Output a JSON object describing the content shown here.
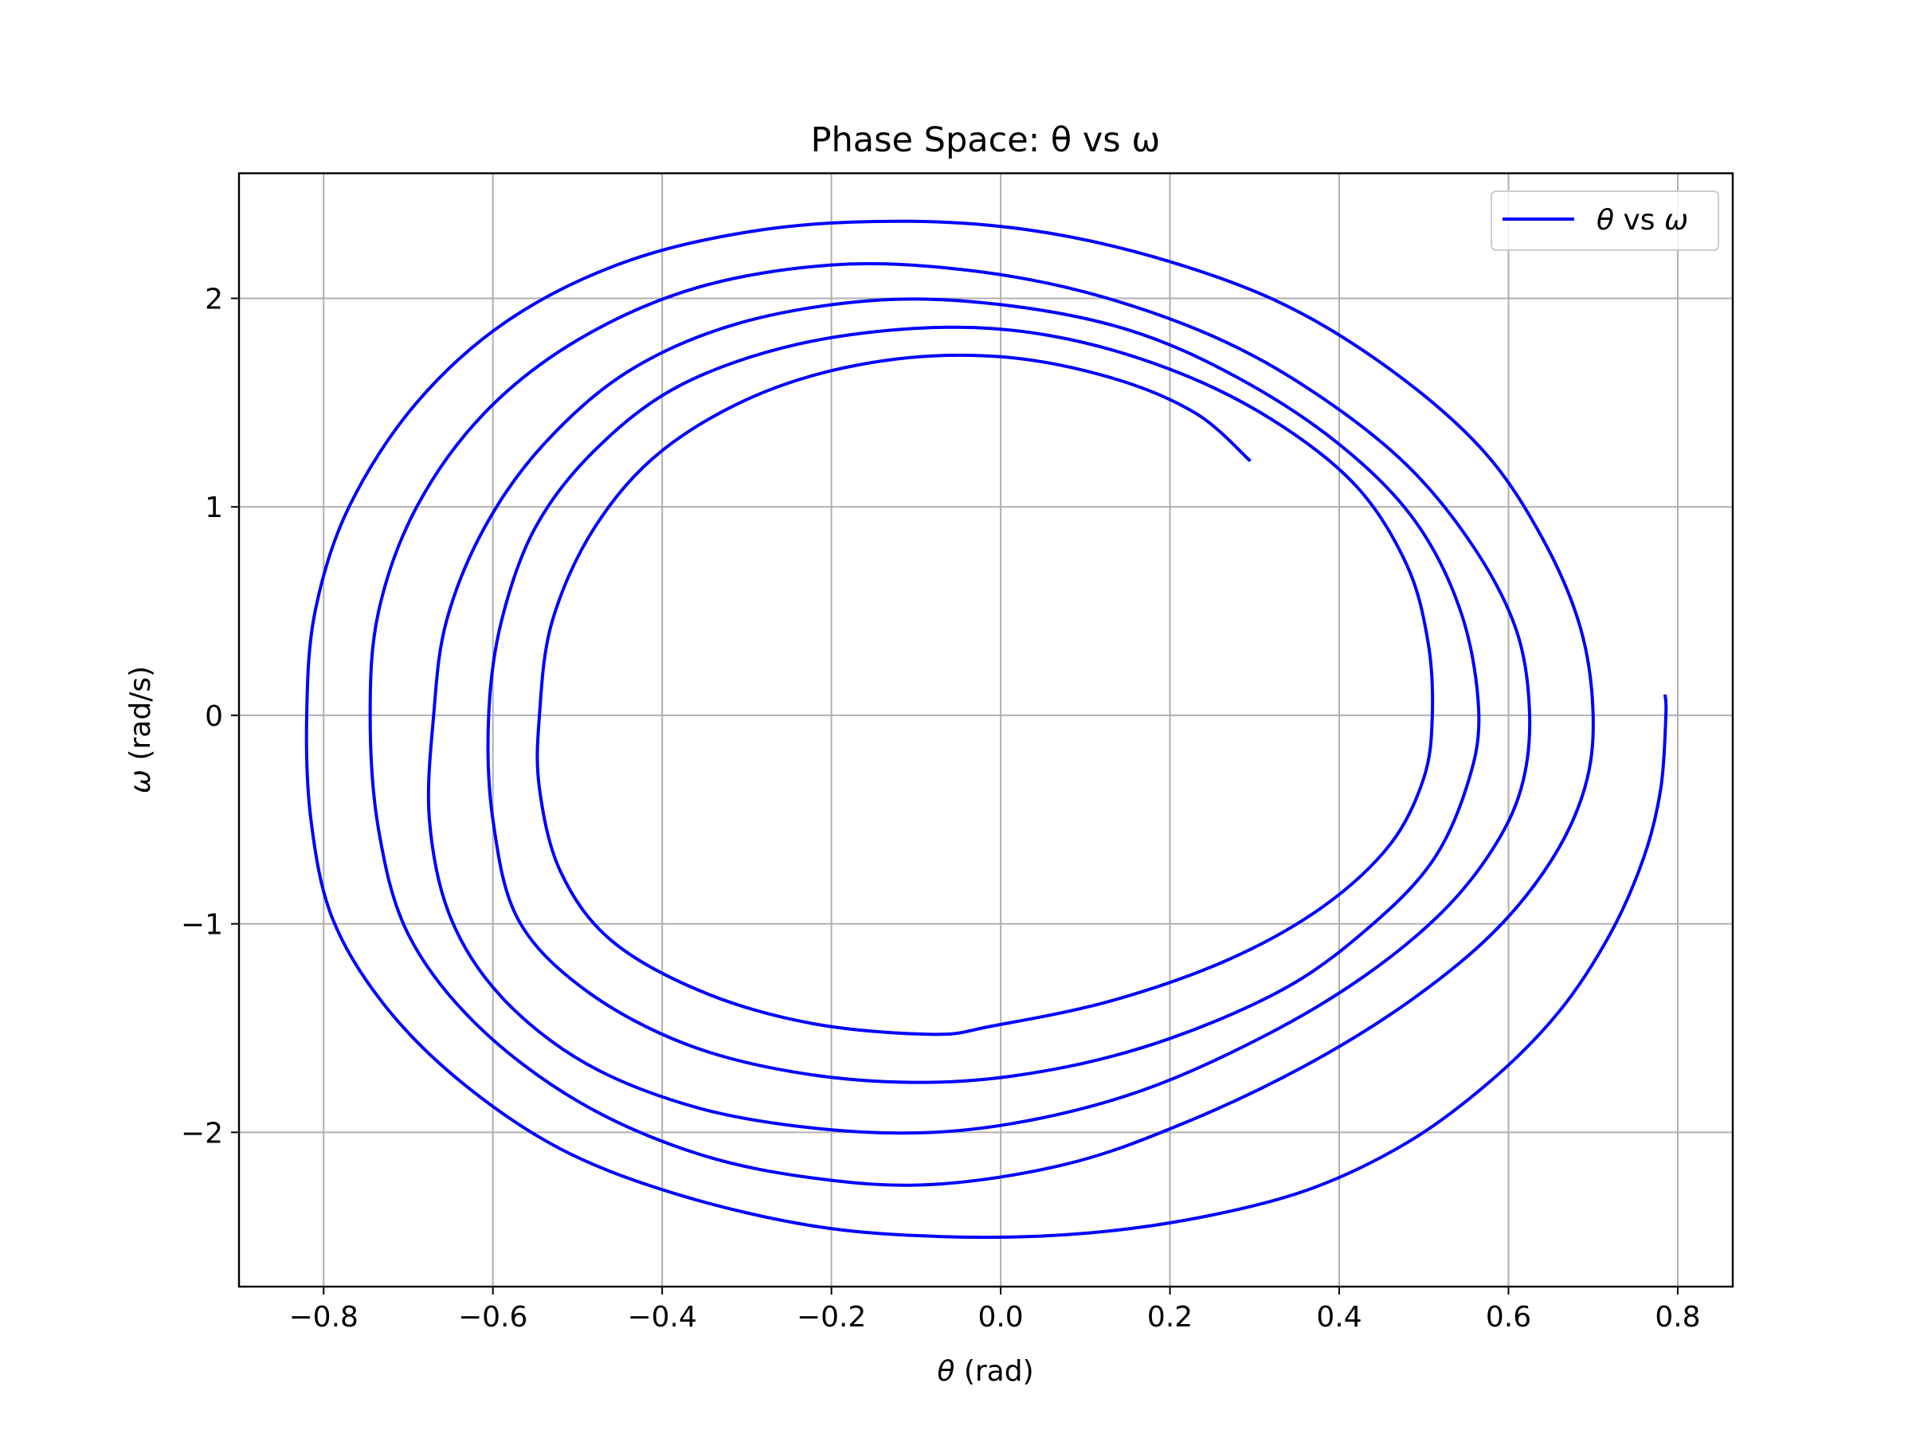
{
  "chart_data": {
    "type": "line",
    "title": "Phase Space: θ vs ω",
    "xlabel": {
      "symbol": "θ",
      "unit": " (rad)"
    },
    "ylabel": {
      "symbol": "ω",
      "unit": " (rad/s)"
    },
    "xlim": [
      -0.9,
      0.865
    ],
    "ylim": [
      -2.74,
      2.6
    ],
    "xticks": [
      -0.8,
      -0.6,
      -0.4,
      -0.2,
      0.0,
      0.2,
      0.4,
      0.6,
      0.8
    ],
    "xtick_labels": [
      "−0.8",
      "−0.6",
      "−0.4",
      "−0.2",
      "0.0",
      "0.2",
      "0.4",
      "0.6",
      "0.8"
    ],
    "yticks": [
      -2,
      -1,
      0,
      1,
      2
    ],
    "ytick_labels": [
      "−2",
      "−1",
      "0",
      "1",
      "2"
    ],
    "grid": true,
    "legend_position": "top-right",
    "series": [
      {
        "name": "θ vs ω",
        "legend_parts": {
          "a": "θ",
          "mid": " vs ",
          "b": "ω"
        },
        "color": "#0000ff",
        "points": [
          [
            0.785,
            0.1
          ],
          [
            0.786,
            0.0
          ],
          [
            0.78,
            -0.35
          ],
          [
            0.76,
            -0.68
          ],
          [
            0.72,
            -1.05
          ],
          [
            0.66,
            -1.42
          ],
          [
            0.58,
            -1.75
          ],
          [
            0.48,
            -2.05
          ],
          [
            0.36,
            -2.28
          ],
          [
            0.22,
            -2.42
          ],
          [
            0.08,
            -2.49
          ],
          [
            -0.07,
            -2.5
          ],
          [
            -0.22,
            -2.45
          ],
          [
            -0.38,
            -2.3
          ],
          [
            -0.52,
            -2.08
          ],
          [
            -0.64,
            -1.75
          ],
          [
            -0.73,
            -1.38
          ],
          [
            -0.79,
            -0.97
          ],
          [
            -0.815,
            -0.5
          ],
          [
            -0.82,
            0.0
          ],
          [
            -0.81,
            0.5
          ],
          [
            -0.77,
            1.0
          ],
          [
            -0.69,
            1.5
          ],
          [
            -0.58,
            1.9
          ],
          [
            -0.44,
            2.18
          ],
          [
            -0.28,
            2.33
          ],
          [
            -0.12,
            2.37
          ],
          [
            0.03,
            2.33
          ],
          [
            0.18,
            2.2
          ],
          [
            0.33,
            1.98
          ],
          [
            0.46,
            1.66
          ],
          [
            0.57,
            1.27
          ],
          [
            0.64,
            0.85
          ],
          [
            0.685,
            0.42
          ],
          [
            0.7,
            0.0
          ],
          [
            0.69,
            -0.35
          ],
          [
            0.65,
            -0.7
          ],
          [
            0.58,
            -1.05
          ],
          [
            0.48,
            -1.38
          ],
          [
            0.36,
            -1.68
          ],
          [
            0.22,
            -1.95
          ],
          [
            0.08,
            -2.15
          ],
          [
            -0.08,
            -2.25
          ],
          [
            -0.22,
            -2.22
          ],
          [
            -0.36,
            -2.1
          ],
          [
            -0.5,
            -1.85
          ],
          [
            -0.62,
            -1.48
          ],
          [
            -0.7,
            -1.05
          ],
          [
            -0.735,
            -0.55
          ],
          [
            -0.745,
            0.0
          ],
          [
            -0.735,
            0.5
          ],
          [
            -0.69,
            1.0
          ],
          [
            -0.61,
            1.45
          ],
          [
            -0.5,
            1.8
          ],
          [
            -0.36,
            2.05
          ],
          [
            -0.2,
            2.16
          ],
          [
            -0.05,
            2.14
          ],
          [
            0.1,
            2.03
          ],
          [
            0.25,
            1.82
          ],
          [
            0.37,
            1.55
          ],
          [
            0.48,
            1.2
          ],
          [
            0.56,
            0.8
          ],
          [
            0.61,
            0.4
          ],
          [
            0.625,
            0.0
          ],
          [
            0.615,
            -0.35
          ],
          [
            0.58,
            -0.65
          ],
          [
            0.52,
            -0.95
          ],
          [
            0.43,
            -1.25
          ],
          [
            0.32,
            -1.52
          ],
          [
            0.18,
            -1.78
          ],
          [
            0.05,
            -1.93
          ],
          [
            -0.08,
            -2.0
          ],
          [
            -0.22,
            -1.98
          ],
          [
            -0.36,
            -1.88
          ],
          [
            -0.49,
            -1.67
          ],
          [
            -0.59,
            -1.35
          ],
          [
            -0.65,
            -0.97
          ],
          [
            -0.675,
            -0.5
          ],
          [
            -0.67,
            0.0
          ],
          [
            -0.655,
            0.45
          ],
          [
            -0.61,
            0.9
          ],
          [
            -0.54,
            1.3
          ],
          [
            -0.44,
            1.65
          ],
          [
            -0.31,
            1.88
          ],
          [
            -0.15,
            1.99
          ],
          [
            0.0,
            1.97
          ],
          [
            0.15,
            1.85
          ],
          [
            0.28,
            1.62
          ],
          [
            0.4,
            1.3
          ],
          [
            0.49,
            0.93
          ],
          [
            0.545,
            0.48
          ],
          [
            0.565,
            0.0
          ],
          [
            0.55,
            -0.35
          ],
          [
            0.51,
            -0.7
          ],
          [
            0.44,
            -1.0
          ],
          [
            0.34,
            -1.3
          ],
          [
            0.2,
            -1.55
          ],
          [
            0.06,
            -1.7
          ],
          [
            -0.08,
            -1.76
          ],
          [
            -0.23,
            -1.72
          ],
          [
            -0.37,
            -1.58
          ],
          [
            -0.49,
            -1.32
          ],
          [
            -0.57,
            -0.98
          ],
          [
            -0.6,
            -0.5
          ],
          [
            -0.605,
            0.0
          ],
          [
            -0.59,
            0.45
          ],
          [
            -0.55,
            0.9
          ],
          [
            -0.48,
            1.27
          ],
          [
            -0.38,
            1.58
          ],
          [
            -0.24,
            1.78
          ],
          [
            -0.08,
            1.86
          ],
          [
            0.06,
            1.82
          ],
          [
            0.2,
            1.66
          ],
          [
            0.32,
            1.42
          ],
          [
            0.42,
            1.1
          ],
          [
            0.48,
            0.72
          ],
          [
            0.505,
            0.35
          ],
          [
            0.51,
            0.0
          ],
          [
            0.5,
            -0.3
          ],
          [
            0.46,
            -0.62
          ],
          [
            0.38,
            -0.92
          ],
          [
            0.27,
            -1.17
          ],
          [
            0.13,
            -1.37
          ],
          [
            -0.01,
            -1.49
          ],
          [
            -0.08,
            -1.53
          ],
          [
            -0.22,
            -1.48
          ],
          [
            -0.35,
            -1.33
          ],
          [
            -0.46,
            -1.08
          ],
          [
            -0.52,
            -0.75
          ],
          [
            -0.545,
            -0.35
          ],
          [
            -0.545,
            0.0
          ],
          [
            -0.53,
            0.45
          ],
          [
            -0.48,
            0.9
          ],
          [
            -0.4,
            1.27
          ],
          [
            -0.28,
            1.55
          ],
          [
            -0.14,
            1.7
          ],
          [
            0.0,
            1.72
          ],
          [
            0.13,
            1.62
          ],
          [
            0.23,
            1.45
          ],
          [
            0.295,
            1.22
          ]
        ]
      }
    ]
  }
}
